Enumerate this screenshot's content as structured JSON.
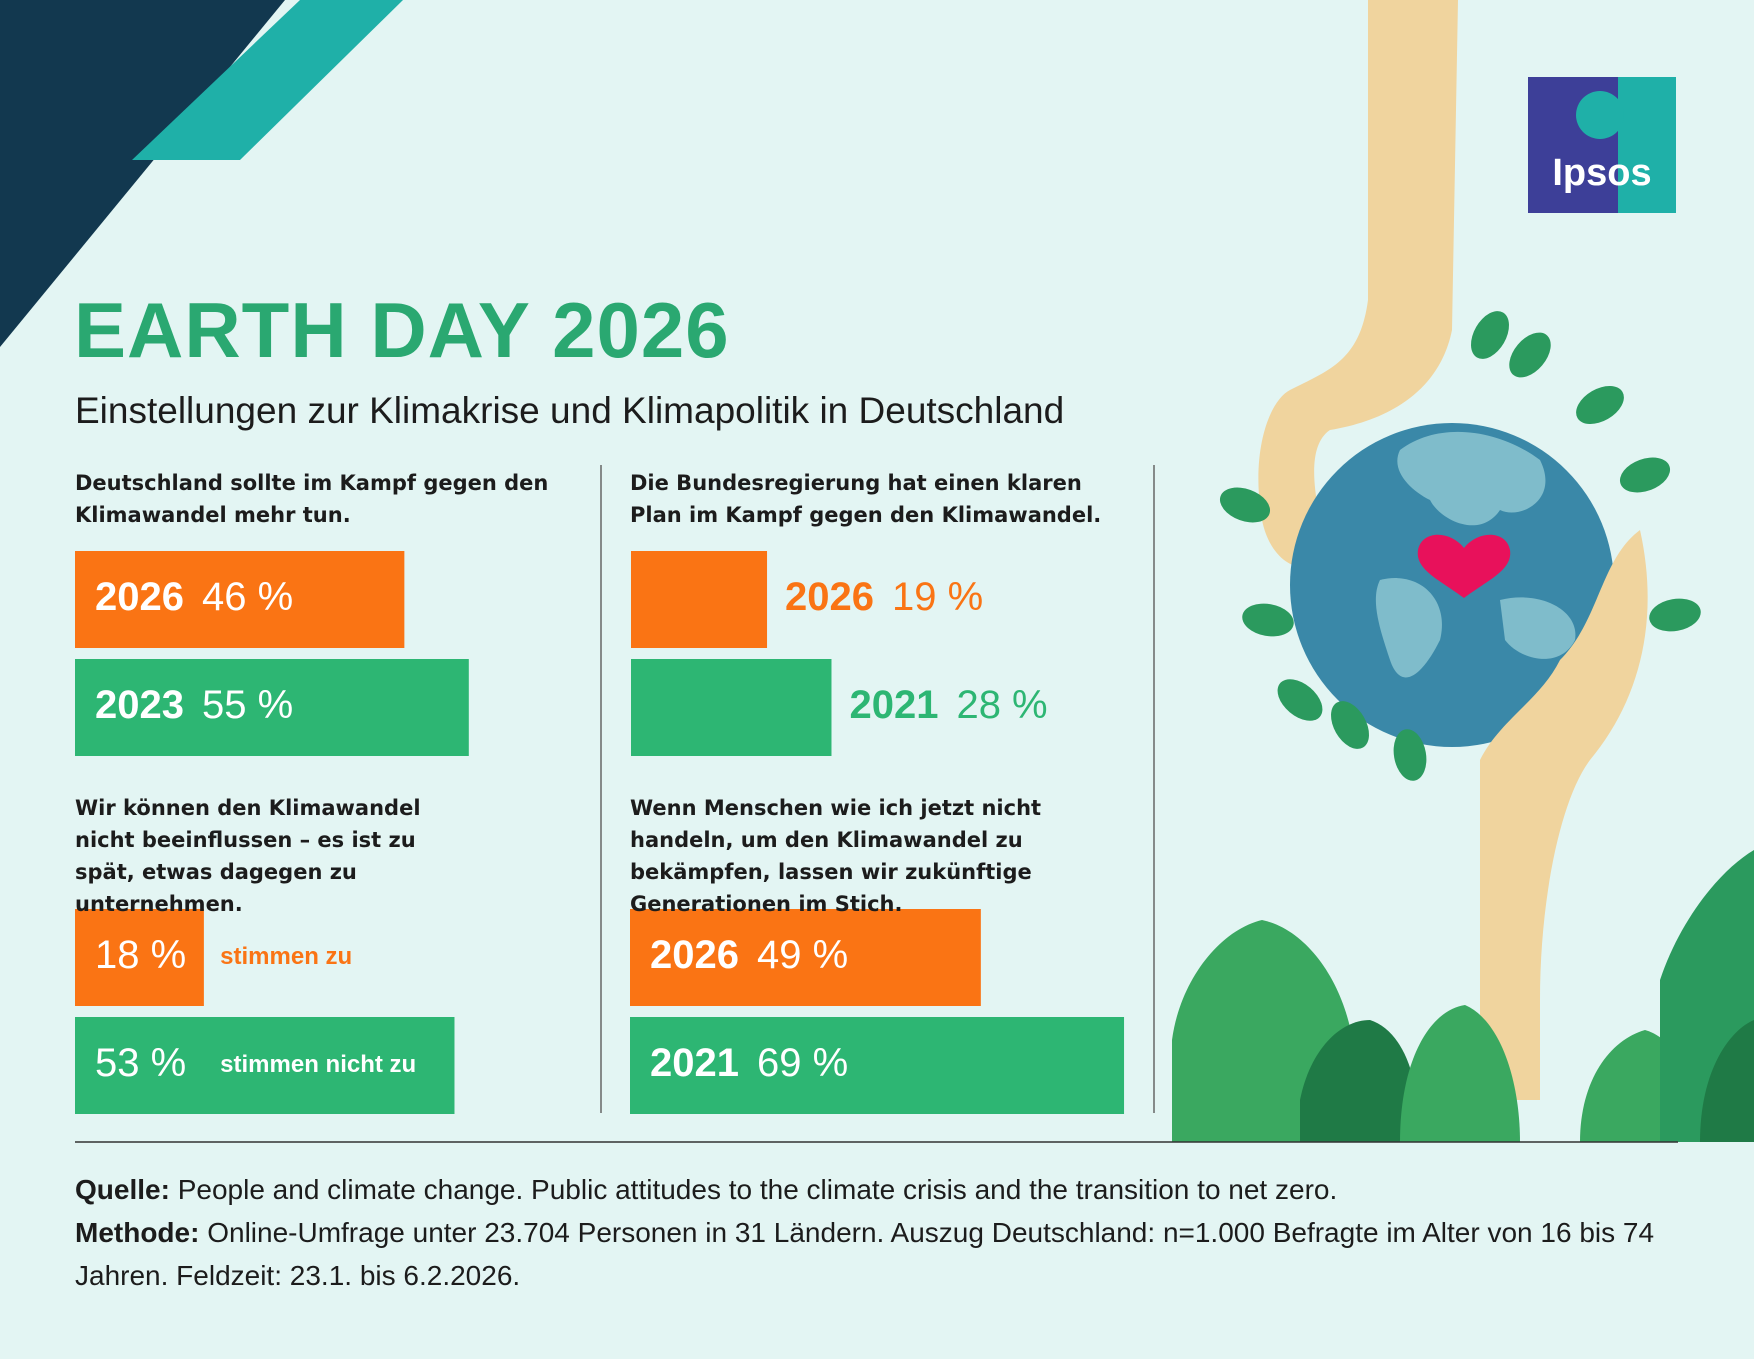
{
  "title": "EARTH DAY 2026",
  "subtitle": "Einstellungen zur Klimakrise und Klimapolitik in Deutschland",
  "logo": "Ipsos",
  "source": {
    "label": "Quelle:",
    "text": "People and climate change. Public attitudes to the climate crisis and the transition to net zero."
  },
  "method": {
    "label": "Methode:",
    "text": "Online-Umfrage unter 23.704 Personen in 31 Ländern. Auszug Deutschland: n=1.000 Befragte im Alter von 16 bis 74 Jahren. Feldzeit: 23.1. bis 6.2.2026."
  },
  "chart_data": [
    {
      "type": "bar",
      "title": "Deutschland sollte im Kampf gegen den Klimawandel mehr tun.",
      "categories": [
        "2026",
        "2023"
      ],
      "values": [
        46,
        55
      ],
      "value_labels": [
        "46 %",
        "55 %"
      ],
      "colors": [
        "#fa7414",
        "#2db673"
      ]
    },
    {
      "type": "bar",
      "title": "Die Bundesregierung hat einen klaren Plan im Kampf gegen den Klimawandel.",
      "categories": [
        "2026",
        "2021"
      ],
      "values": [
        19,
        28
      ],
      "value_labels": [
        "19 %",
        "28 %"
      ],
      "colors": [
        "#fa7414",
        "#2db673"
      ]
    },
    {
      "type": "bar",
      "title": "Wir können den Klimawandel nicht beeinflussen – es ist zu spät, etwas dagegen zu unternehmen.",
      "categories": [
        "stimmen zu",
        "stimmen nicht zu"
      ],
      "values": [
        18,
        53
      ],
      "value_labels": [
        "18 %",
        "53 %"
      ],
      "colors": [
        "#fa7414",
        "#2db673"
      ]
    },
    {
      "type": "bar",
      "title": "Wenn Menschen wie ich jetzt nicht handeln, um den Klimawandel zu bekämpfen, lassen wir zukünftige Generationen im Stich.",
      "categories": [
        "2026",
        "2021"
      ],
      "values": [
        49,
        69
      ],
      "value_labels": [
        "49 %",
        "69 %"
      ],
      "colors": [
        "#fa7414",
        "#2db673"
      ]
    }
  ]
}
